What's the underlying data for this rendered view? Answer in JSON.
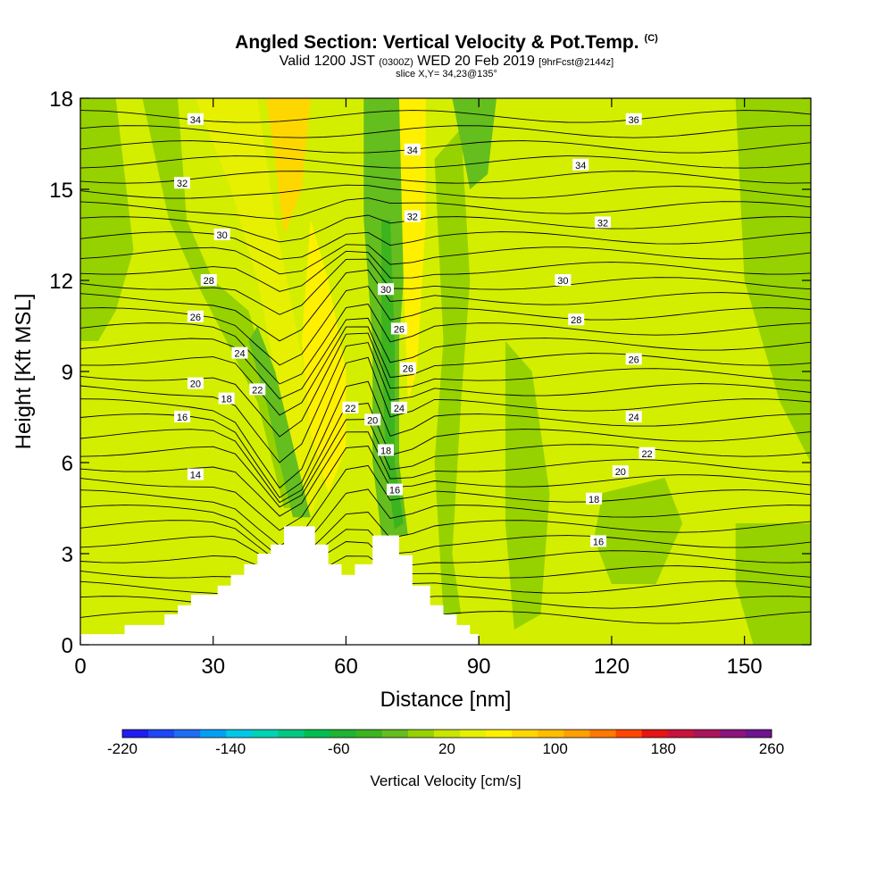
{
  "title": {
    "main": "Angled Section: Vertical Velocity & Pot.Temp.",
    "copyright": "(C)",
    "valid_prefix": "Valid 1200 JST",
    "valid_utc": "(0300Z)",
    "valid_date": "WED 20 Feb 2019",
    "forecast": "[9hrFcst@2144z]",
    "slice": "slice X,Y= 34,23@135°"
  },
  "chart_data": {
    "type": "contour",
    "xlabel": "Distance [nm]",
    "ylabel": "Height [Kft MSL]",
    "xlim": [
      0,
      165
    ],
    "ylim": [
      0,
      18
    ],
    "x_ticks": [
      0,
      30,
      60,
      90,
      120,
      150
    ],
    "y_ticks": [
      0,
      3,
      6,
      9,
      12,
      15,
      18
    ],
    "colorbar": {
      "label": "Vertical Velocity [cm/s]",
      "min": -220,
      "max": 260,
      "step": 20,
      "tick_labels": [
        "-220",
        "-140",
        "-60",
        "20",
        "100",
        "180",
        "260"
      ],
      "colors": [
        "#1e1ef0",
        "#1e46f5",
        "#1e6ef5",
        "#00a0f5",
        "#00c8e6",
        "#00d2b4",
        "#00c882",
        "#00be50",
        "#1eb432",
        "#3cb41e",
        "#64be1e",
        "#96d200",
        "#c8e600",
        "#e6f000",
        "#fff000",
        "#ffd700",
        "#ffbe00",
        "#ffa000",
        "#ff7800",
        "#ff4600",
        "#e61414",
        "#c8143c",
        "#aa145a",
        "#8c147d",
        "#6e148c"
      ]
    },
    "theta_labels": [
      {
        "x": 26,
        "y": 17.3,
        "text": "34"
      },
      {
        "x": 23,
        "y": 15.2,
        "text": "32"
      },
      {
        "x": 32,
        "y": 13.5,
        "text": "30"
      },
      {
        "x": 29,
        "y": 12.0,
        "text": "28"
      },
      {
        "x": 26,
        "y": 10.8,
        "text": "26"
      },
      {
        "x": 36,
        "y": 9.6,
        "text": "24"
      },
      {
        "x": 26,
        "y": 8.6,
        "text": "20"
      },
      {
        "x": 40,
        "y": 8.4,
        "text": "22"
      },
      {
        "x": 33,
        "y": 8.1,
        "text": "18"
      },
      {
        "x": 23,
        "y": 7.5,
        "text": "16"
      },
      {
        "x": 26,
        "y": 5.6,
        "text": "14"
      },
      {
        "x": 75,
        "y": 16.3,
        "text": "34"
      },
      {
        "x": 75,
        "y": 14.1,
        "text": "32"
      },
      {
        "x": 69,
        "y": 11.7,
        "text": "30"
      },
      {
        "x": 72,
        "y": 10.4,
        "text": "26"
      },
      {
        "x": 74,
        "y": 9.1,
        "text": "26"
      },
      {
        "x": 61,
        "y": 7.8,
        "text": "22"
      },
      {
        "x": 66,
        "y": 7.4,
        "text": "20"
      },
      {
        "x": 72,
        "y": 7.8,
        "text": "24"
      },
      {
        "x": 69,
        "y": 6.4,
        "text": "18"
      },
      {
        "x": 71,
        "y": 5.1,
        "text": "16"
      },
      {
        "x": 125,
        "y": 17.3,
        "text": "36"
      },
      {
        "x": 113,
        "y": 15.8,
        "text": "34"
      },
      {
        "x": 118,
        "y": 13.9,
        "text": "32"
      },
      {
        "x": 109,
        "y": 12.0,
        "text": "30"
      },
      {
        "x": 112,
        "y": 10.7,
        "text": "28"
      },
      {
        "x": 125,
        "y": 9.4,
        "text": "26"
      },
      {
        "x": 125,
        "y": 7.5,
        "text": "24"
      },
      {
        "x": 128,
        "y": 6.3,
        "text": "22"
      },
      {
        "x": 122,
        "y": 5.7,
        "text": "20"
      },
      {
        "x": 116,
        "y": 4.8,
        "text": "18"
      },
      {
        "x": 117,
        "y": 3.4,
        "text": "16"
      }
    ],
    "terrain": [
      [
        0,
        0.35
      ],
      [
        10,
        0.35
      ],
      [
        10,
        0.65
      ],
      [
        19,
        0.65
      ],
      [
        19,
        1.0
      ],
      [
        22,
        1.0
      ],
      [
        22,
        1.3
      ],
      [
        25,
        1.3
      ],
      [
        25,
        1.65
      ],
      [
        31,
        1.65
      ],
      [
        31,
        1.95
      ],
      [
        34,
        1.95
      ],
      [
        34,
        2.3
      ],
      [
        37,
        2.3
      ],
      [
        37,
        2.65
      ],
      [
        40,
        2.65
      ],
      [
        40,
        3.0
      ],
      [
        43,
        3.0
      ],
      [
        43,
        3.3
      ],
      [
        46,
        3.3
      ],
      [
        46,
        3.9
      ],
      [
        53,
        3.9
      ],
      [
        53,
        3.3
      ],
      [
        56,
        3.3
      ],
      [
        56,
        2.65
      ],
      [
        59,
        2.65
      ],
      [
        59,
        2.3
      ],
      [
        62,
        2.3
      ],
      [
        62,
        2.65
      ],
      [
        66,
        2.65
      ],
      [
        66,
        3.6
      ],
      [
        72,
        3.6
      ],
      [
        72,
        2.95
      ],
      [
        75,
        2.95
      ],
      [
        75,
        1.95
      ],
      [
        79,
        1.95
      ],
      [
        79,
        1.3
      ],
      [
        82,
        1.3
      ],
      [
        82,
        1.0
      ],
      [
        85,
        1.0
      ],
      [
        85,
        0.65
      ],
      [
        88,
        0.65
      ],
      [
        88,
        0.35
      ],
      [
        90,
        0.35
      ],
      [
        90,
        0
      ]
    ]
  }
}
